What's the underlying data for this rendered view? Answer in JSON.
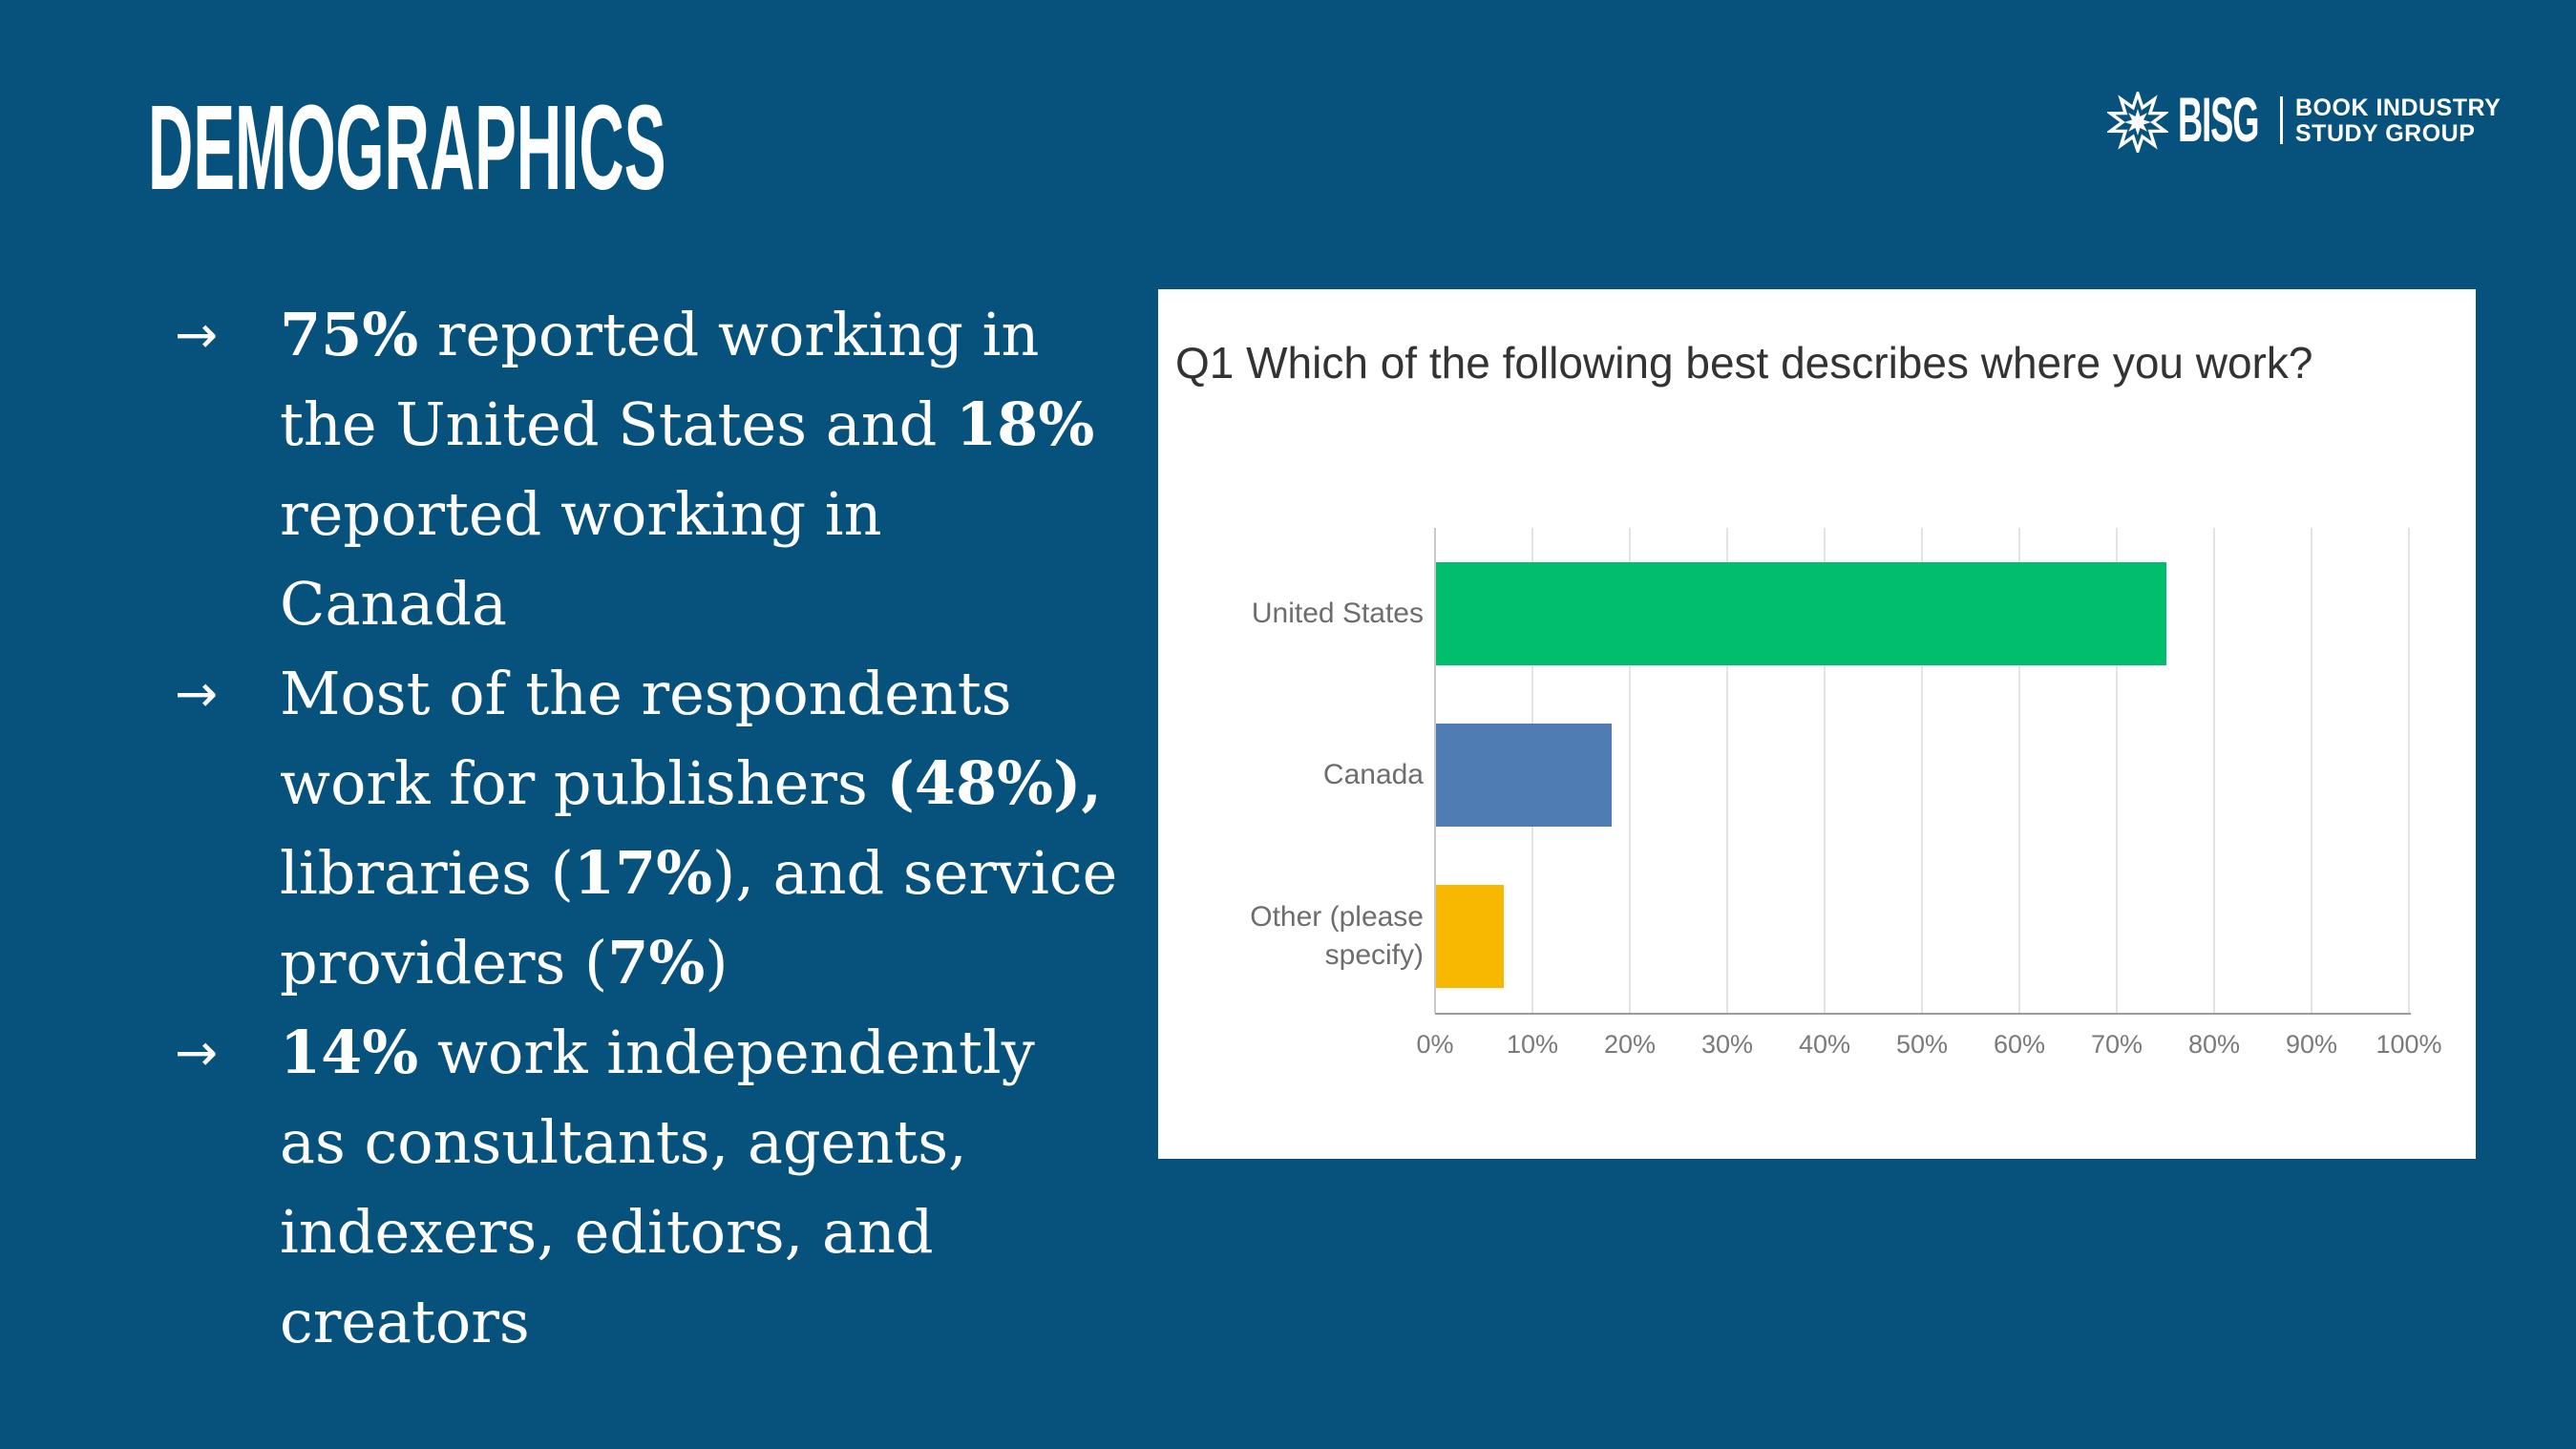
{
  "slide": {
    "title": "DEMOGRAPHICS",
    "background_color": "#06527D",
    "text_color": "#FFFFFF",
    "bullet_glyph": "→"
  },
  "logo": {
    "icon": "starburst-icon",
    "brand": "BISG",
    "tagline_line1": "BOOK INDUSTRY",
    "tagline_line2": "STUDY GROUP"
  },
  "bullets": [
    {
      "lines": [
        [
          {
            "t": "75%",
            "b": true
          },
          {
            "t": " reported working in",
            "b": false
          }
        ],
        [
          {
            "t": "the United States and ",
            "b": false
          },
          {
            "t": "18%",
            "b": true
          }
        ],
        [
          {
            "t": "reported working in",
            "b": false
          }
        ],
        [
          {
            "t": "Canada",
            "b": false
          }
        ]
      ]
    },
    {
      "lines": [
        [
          {
            "t": "Most of the respondents",
            "b": false
          }
        ],
        [
          {
            "t": "work for publishers ",
            "b": false
          },
          {
            "t": "(48%),",
            "b": true
          }
        ],
        [
          {
            "t": "libraries (",
            "b": false
          },
          {
            "t": "17%",
            "b": true
          },
          {
            "t": "), and service",
            "b": false
          }
        ],
        [
          {
            "t": "providers (",
            "b": false
          },
          {
            "t": "7%",
            "b": true
          },
          {
            "t": ")",
            "b": false
          }
        ]
      ]
    },
    {
      "lines": [
        [
          {
            "t": "14%",
            "b": true
          },
          {
            "t": " work independently",
            "b": false
          }
        ],
        [
          {
            "t": "as consultants, agents,",
            "b": false
          }
        ],
        [
          {
            "t": "indexers, editors, and",
            "b": false
          }
        ],
        [
          {
            "t": "creators",
            "b": false
          }
        ]
      ]
    }
  ],
  "chart_data": {
    "type": "bar",
    "orientation": "horizontal",
    "title": "Q1 Which of the following best describes where you work?",
    "categories": [
      "United States",
      "Canada",
      "Other (please specify)"
    ],
    "values": [
      75,
      18,
      7
    ],
    "colors": [
      "#00BE6E",
      "#4E7CB3",
      "#F8B700"
    ],
    "x_ticks": [
      "0%",
      "10%",
      "20%",
      "30%",
      "40%",
      "50%",
      "60%",
      "70%",
      "80%",
      "90%",
      "100%"
    ],
    "xlim": [
      0,
      100
    ],
    "grid": true,
    "legend": false,
    "axis_color": "#9B9B9B",
    "grid_color": "#E4E4E4",
    "label_color": "#6D6D6D",
    "title_color": "#333333"
  }
}
